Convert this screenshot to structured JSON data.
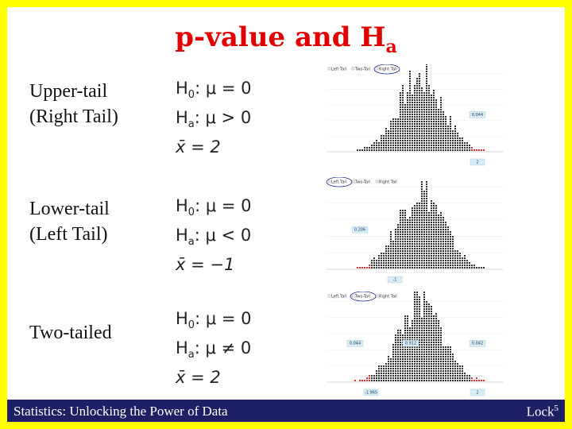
{
  "title": {
    "main": "p-value and H",
    "sub": "a"
  },
  "rows": [
    {
      "label": [
        "Upper-tail",
        "(Right Tail)"
      ],
      "h0": {
        "symbol": "H",
        "sub": "0",
        "rest": ": μ  = 0"
      },
      "ha": {
        "symbol": "H",
        "sub": "a",
        "rest": ": μ  > 0"
      },
      "stat": "x̄ = 2",
      "plot": {
        "tabs": [
          "Left Tail",
          "Two-Tail",
          "Right Tail"
        ],
        "tail": "right",
        "p_values": [
          "0.044"
        ],
        "statistics": [
          "2"
        ]
      }
    },
    {
      "label": [
        "Lower-tail",
        "(Left Tail)"
      ],
      "h0": {
        "symbol": "H",
        "sub": "0",
        "rest": ": μ  = 0"
      },
      "ha": {
        "symbol": "H",
        "sub": "a",
        "rest": ": μ  < 0"
      },
      "stat": "x̄ = −1",
      "plot": {
        "tabs": [
          "Left Tail",
          "Two-Tail",
          "Right Tail"
        ],
        "tail": "left",
        "p_values": [
          "0.206"
        ],
        "statistics": [
          "-1"
        ]
      }
    },
    {
      "label": [
        "Two-tailed"
      ],
      "h0": {
        "symbol": "H",
        "sub": "0",
        "rest": ": μ  = 0"
      },
      "ha": {
        "symbol": "H",
        "sub": "a",
        "rest": ": μ  ≠ 0"
      },
      "stat": "x̄ = 2",
      "plot": {
        "tabs": [
          "Left Tail",
          "Two-Tail",
          "Right Tail"
        ],
        "tail": "both",
        "p_values": [
          "0.044",
          "0.912",
          "0.042"
        ],
        "statistics": [
          "-1.965",
          "2"
        ]
      }
    }
  ],
  "footer": {
    "left": "Statistics: Unlocking the Power of Data",
    "right": "Lock",
    "sup": "5"
  }
}
